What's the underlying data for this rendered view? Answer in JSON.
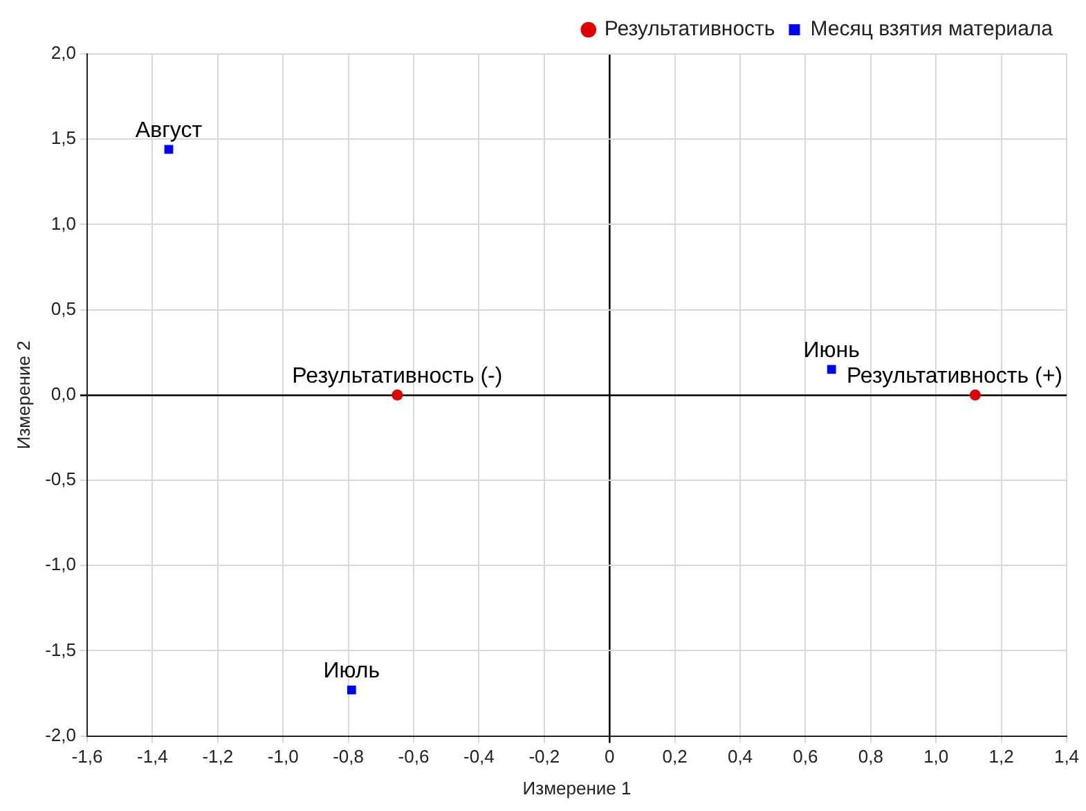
{
  "chart_data": {
    "type": "scatter",
    "xlabel": "Измерение 1",
    "ylabel": "Измерение 2",
    "xlim": [
      -1.6,
      1.4
    ],
    "ylim": [
      -2.0,
      2.0
    ],
    "xticks": [
      {
        "value": -1.6,
        "label": "-1,6"
      },
      {
        "value": -1.4,
        "label": "-1,4"
      },
      {
        "value": -1.2,
        "label": "-1,2"
      },
      {
        "value": -1.0,
        "label": "-1,0"
      },
      {
        "value": -0.8,
        "label": "-0,8"
      },
      {
        "value": -0.6,
        "label": "-0,6"
      },
      {
        "value": -0.4,
        "label": "-0,4"
      },
      {
        "value": -0.2,
        "label": "-0,2"
      },
      0,
      {
        "value": 0.2,
        "label": "0,2"
      },
      {
        "value": 0.4,
        "label": "0,4"
      },
      {
        "value": 0.6,
        "label": "0,6"
      },
      {
        "value": 0.8,
        "label": "0,8"
      },
      {
        "value": 1.0,
        "label": "1,0"
      },
      {
        "value": 1.2,
        "label": "1,2"
      },
      {
        "value": 1.4,
        "label": "1,4"
      }
    ],
    "yticks": [
      {
        "value": -2.0,
        "label": "-2,0"
      },
      {
        "value": -1.5,
        "label": "-1,5"
      },
      {
        "value": -1.0,
        "label": "-1,0"
      },
      {
        "value": -0.5,
        "label": "-0,5"
      },
      {
        "value": 0,
        "label": "0,0"
      },
      {
        "value": 0.5,
        "label": "0,5"
      },
      {
        "value": 1.0,
        "label": "1,0"
      },
      {
        "value": 1.5,
        "label": "1,5"
      },
      {
        "value": 2.0,
        "label": "2,0"
      }
    ],
    "series": [
      {
        "name": "Результативность",
        "color": "#e00000",
        "marker": "circle",
        "x": [
          -0.65,
          1.12
        ],
        "values": [
          0,
          0
        ]
      },
      {
        "name": "Месяц взятия материала",
        "color": "#0000ff",
        "marker": "square",
        "x": [
          0.68,
          -0.79,
          -1.35
        ],
        "values": [
          0.15,
          -1.73,
          1.44
        ]
      }
    ],
    "annotations": [
      {
        "text": "Результативность (-)",
        "x": -0.65,
        "y": 0
      },
      {
        "text": "Результативность (+)",
        "x": 1.12,
        "y": 0
      },
      {
        "text": "Июнь",
        "x": 0.68,
        "y": 0.15
      },
      {
        "text": "Июль",
        "x": -0.79,
        "y": -1.73
      },
      {
        "text": "Август",
        "x": -1.35,
        "y": 1.44
      }
    ],
    "grid": true,
    "legend": "top right"
  }
}
